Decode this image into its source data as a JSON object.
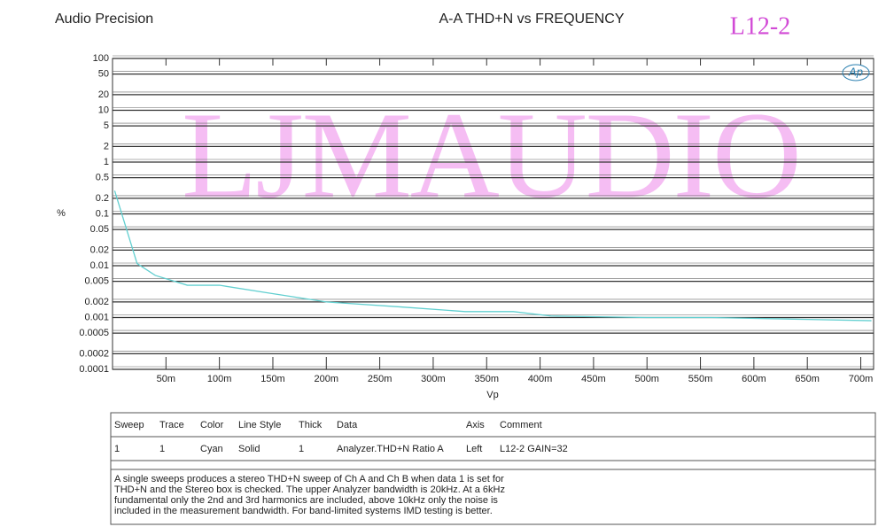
{
  "chart_data": {
    "type": "line",
    "brand": "Audio Precision",
    "title": "A-A THD+N vs FREQUENCY",
    "tag": "L12-2",
    "watermark": "LJMAUDIO",
    "logo": "Ap",
    "ylabel": "%",
    "xlabel": "Vp",
    "ylog": true,
    "grid": true,
    "ylim": [
      0.0001,
      100
    ],
    "yticks": [
      100,
      50,
      20,
      10,
      5,
      2,
      1,
      0.5,
      0.2,
      0.1,
      0.05,
      0.02,
      0.01,
      0.005,
      0.002,
      0.001,
      0.0005,
      0.0002,
      0.0001
    ],
    "xlim": [
      0,
      0.712
    ],
    "xticks": [
      {
        "value": 0.05,
        "label": "50m"
      },
      {
        "value": 0.1,
        "label": "100m"
      },
      {
        "value": 0.15,
        "label": "150m"
      },
      {
        "value": 0.2,
        "label": "200m"
      },
      {
        "value": 0.25,
        "label": "250m"
      },
      {
        "value": 0.3,
        "label": "300m"
      },
      {
        "value": 0.35,
        "label": "350m"
      },
      {
        "value": 0.4,
        "label": "400m"
      },
      {
        "value": 0.45,
        "label": "450m"
      },
      {
        "value": 0.5,
        "label": "500m"
      },
      {
        "value": 0.55,
        "label": "550m"
      },
      {
        "value": 0.6,
        "label": "600m"
      },
      {
        "value": 0.65,
        "label": "650m"
      },
      {
        "value": 0.7,
        "label": "700m"
      }
    ],
    "x": [
      0.002,
      0.023,
      0.04,
      0.07,
      0.1,
      0.145,
      0.2,
      0.27,
      0.33,
      0.375,
      0.41,
      0.5,
      0.56,
      0.65,
      0.71
    ],
    "series": [
      {
        "color": "#62cfd0",
        "values": [
          0.28,
          0.011,
          0.0065,
          0.0042,
          0.0042,
          0.003,
          0.002,
          0.0016,
          0.0013,
          0.0013,
          0.00107,
          0.001,
          0.001,
          0.00092,
          0.00087
        ]
      }
    ]
  },
  "table": {
    "header": [
      "Sweep",
      "Trace",
      "Color",
      "Line Style",
      "Thick",
      "Data",
      "Axis",
      "Comment"
    ],
    "rows": [
      [
        "1",
        "1",
        "Cyan",
        "Solid",
        "1",
        "Analyzer.THD+N Ratio A",
        "Left",
        "L12-2 GAIN=32"
      ]
    ],
    "note": [
      "A single sweeps produces a stereo THD+N sweep of Ch A and Ch B when data 1 is set for",
      "THD+N and the Stereo box is checked.  The upper Analyzer bandwidth is 20kHz.  At a 6kHz",
      "fundamental only the 2nd and 3rd harmonics are included, above 10kHz only the noise is",
      "included in the measurement bandwidth.  For band-limited systems IMD testing is better."
    ]
  }
}
